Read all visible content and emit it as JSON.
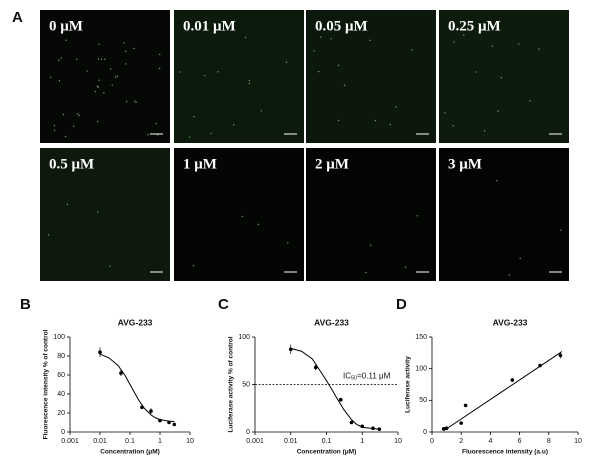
{
  "panel_labels": [
    "A",
    "B",
    "C",
    "D"
  ],
  "images": [
    {
      "label": "0 μM"
    },
    {
      "label": "0.01 μM"
    },
    {
      "label": "0.05 μM"
    },
    {
      "label": "0.25 μM"
    },
    {
      "label": "0.5 μM"
    },
    {
      "label": "1 μM"
    },
    {
      "label": "2 μM"
    },
    {
      "label": "3 μM"
    }
  ],
  "chart_data": [
    {
      "type": "scatter",
      "title": "AVG-233",
      "xlabel": "Concentration (μM)",
      "ylabel": "Fluorescence intensity % of control",
      "xscale": "log",
      "xlim": [
        0.001,
        10
      ],
      "xticks": [
        0.001,
        0.01,
        0.1,
        1,
        10
      ],
      "ylim": [
        0,
        100
      ],
      "yticks": [
        0,
        20,
        40,
        60,
        80,
        100
      ],
      "color": "#000000",
      "series": [
        {
          "x": [
            0.01,
            0.05,
            0.25,
            0.5,
            1,
            2,
            3
          ],
          "values": [
            84,
            62,
            26,
            22,
            12,
            10,
            8
          ],
          "errors": [
            5,
            3,
            1,
            3,
            1,
            1,
            1
          ]
        }
      ],
      "fit": {
        "x": [
          0.01,
          0.02,
          0.04,
          0.07,
          0.1,
          0.15,
          0.2,
          0.3,
          0.5,
          0.7,
          1,
          2,
          3
        ],
        "values": [
          82,
          78,
          70,
          59,
          50,
          40,
          33,
          25,
          18,
          15,
          13,
          11.5,
          11
        ]
      }
    },
    {
      "type": "scatter",
      "title": "AVG-233",
      "xlabel": "Concentration (μM)",
      "ylabel": "Luciferase activity % of control",
      "xscale": "log",
      "xlim": [
        0.001,
        10
      ],
      "xticks": [
        0.001,
        0.01,
        0.1,
        1,
        10
      ],
      "ylim": [
        0,
        100
      ],
      "yticks": [
        0,
        50,
        100
      ],
      "color": "#000000",
      "series": [
        {
          "x": [
            0.01,
            0.05,
            0.25,
            0.5,
            1,
            2,
            3
          ],
          "values": [
            87,
            68,
            34,
            10,
            6,
            4,
            3
          ],
          "errors": [
            5,
            3,
            1,
            1,
            1,
            1,
            1
          ]
        }
      ],
      "fit": {
        "x": [
          0.01,
          0.02,
          0.04,
          0.07,
          0.1,
          0.15,
          0.2,
          0.3,
          0.5,
          0.7,
          1,
          2,
          3
        ],
        "values": [
          88,
          85,
          77,
          63,
          54,
          43,
          35,
          24,
          13,
          8,
          5,
          3.5,
          3
        ]
      },
      "reference_line": {
        "y": 50,
        "prefix": "IC",
        "sub": "50",
        "suffix": "=0.11 μM"
      }
    },
    {
      "type": "scatter",
      "title": "AVG-233",
      "xlabel": "Fluorescence intensity (a.u)",
      "ylabel": "Luciferase activity",
      "xscale": "linear",
      "xlim": [
        0,
        10
      ],
      "xticks": [
        0,
        2,
        4,
        6,
        8,
        10
      ],
      "ylim": [
        0,
        150
      ],
      "yticks": [
        0,
        50,
        100,
        150
      ],
      "color": "#000000",
      "series": [
        {
          "x": [
            0.8,
            1,
            2,
            2.3,
            5.5,
            7.4,
            8.8
          ],
          "values": [
            5,
            6,
            14,
            42,
            82,
            105,
            121
          ],
          "errors": [
            1,
            1,
            1,
            2,
            3,
            3,
            5
          ]
        }
      ],
      "fit": {
        "x": [
          0.8,
          8.9
        ],
        "values": [
          2,
          127
        ]
      }
    }
  ]
}
